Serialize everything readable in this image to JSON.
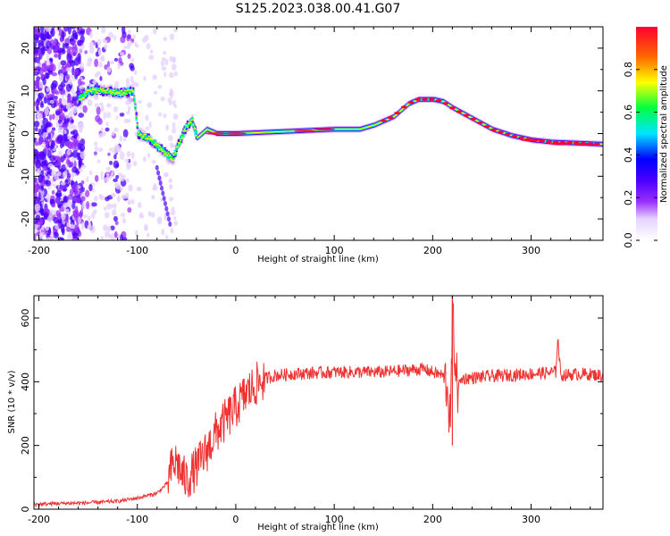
{
  "title": "S125.2023.038.00.41.G07",
  "chart_data": [
    {
      "type": "heatmap",
      "xlabel": "Height of straight line (km)",
      "ylabel": "Frequency (Hz)",
      "xlim": [
        -205,
        373
      ],
      "ylim": [
        -25,
        25
      ],
      "x_ticks": [
        -200,
        -100,
        0,
        100,
        200,
        300
      ],
      "y_ticks": [
        -20,
        -10,
        0,
        10,
        20
      ],
      "colorbar": {
        "label": "Normalized spectral amplitude",
        "range": [
          0,
          1
        ],
        "ticks": [
          0.0,
          0.2,
          0.4,
          0.6,
          0.8
        ],
        "colormap": [
          "#ffffff",
          "#e6d3ff",
          "#9b30ff",
          "#4a00ff",
          "#0000ff",
          "#00e5ff",
          "#00ff40",
          "#ffff00",
          "#ff6600",
          "#ff0033"
        ]
      },
      "ridge": {
        "x": [
          -160,
          -150,
          -130,
          -120,
          -105,
          -100,
          -90,
          -80,
          -75,
          -70,
          -65,
          -60,
          -50,
          -45,
          -40,
          -30,
          -20,
          0,
          50,
          100,
          125,
          140,
          160,
          175,
          185,
          200,
          210,
          220,
          240,
          260,
          280,
          300,
          320,
          373
        ],
        "y": [
          8,
          10,
          10,
          9.5,
          10,
          0,
          -1,
          -3,
          -4,
          -5,
          -6,
          -3,
          2,
          3,
          -1,
          1,
          0,
          0,
          0.5,
          1,
          1,
          2,
          4,
          7,
          8,
          8,
          7.5,
          6,
          3.5,
          1,
          -0.5,
          -1.5,
          -2,
          -2.5
        ]
      }
    },
    {
      "type": "line",
      "xlabel": "Height of straight line (km)",
      "ylabel": "SNR (10 * v/v)",
      "xlim": [
        -205,
        373
      ],
      "ylim": [
        0,
        670
      ],
      "x_ticks": [
        -200,
        -100,
        0,
        100,
        200,
        300
      ],
      "y_ticks": [
        0,
        200,
        400,
        600
      ],
      "series": [
        {
          "color": "#ee3333",
          "x": [
            -205,
            -180,
            -150,
            -120,
            -100,
            -80,
            -70,
            -65,
            -60,
            -55,
            -50,
            -40,
            -30,
            -20,
            -10,
            0,
            10,
            20,
            30,
            40,
            60,
            100,
            150,
            190,
            200,
            210,
            215,
            218,
            220,
            222,
            225,
            230,
            250,
            300,
            325,
            327,
            330,
            350,
            373
          ],
          "y": [
            15,
            18,
            20,
            25,
            35,
            50,
            80,
            130,
            150,
            110,
            90,
            130,
            180,
            240,
            280,
            320,
            360,
            390,
            410,
            420,
            425,
            430,
            430,
            440,
            430,
            420,
            390,
            250,
            600,
            520,
            380,
            410,
            415,
            425,
            430,
            540,
            420,
            425,
            420
          ]
        }
      ]
    }
  ]
}
